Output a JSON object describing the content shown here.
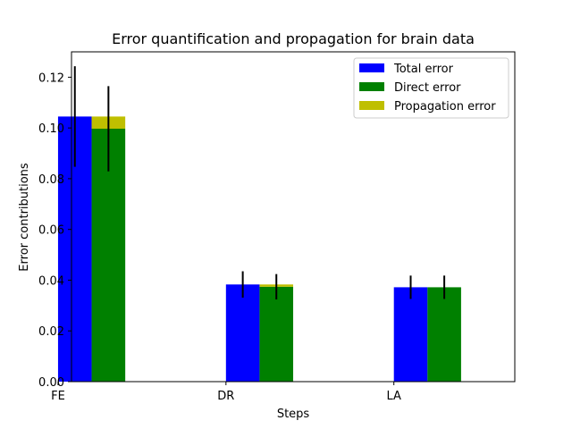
{
  "chart_data": {
    "type": "bar",
    "title": "Error quantification and propagation for brain data",
    "xlabel": "Steps",
    "ylabel": "Error contributions",
    "categories": [
      "FE",
      "DR",
      "LA"
    ],
    "ylim": [
      0,
      0.13
    ],
    "yticks": [
      "0.00",
      "0.02",
      "0.04",
      "0.06",
      "0.08",
      "0.10",
      "0.12"
    ],
    "grid": false,
    "legend_position": "top-right",
    "series": [
      {
        "name": "Total error",
        "color": "#0000ff",
        "values": [
          0.1045,
          0.0383,
          0.0372
        ],
        "errors": [
          0.0198,
          0.0052,
          0.0046
        ]
      },
      {
        "name": "Direct error",
        "color": "#008000",
        "values": [
          0.0997,
          0.0374,
          0.0372
        ],
        "errors": [
          0.0168,
          0.005,
          0.0046
        ]
      },
      {
        "name": "Propagation error",
        "color": "#bfbf00",
        "stacked_on": "Direct error",
        "values": [
          0.0048,
          0.0009,
          0.0
        ]
      }
    ]
  }
}
